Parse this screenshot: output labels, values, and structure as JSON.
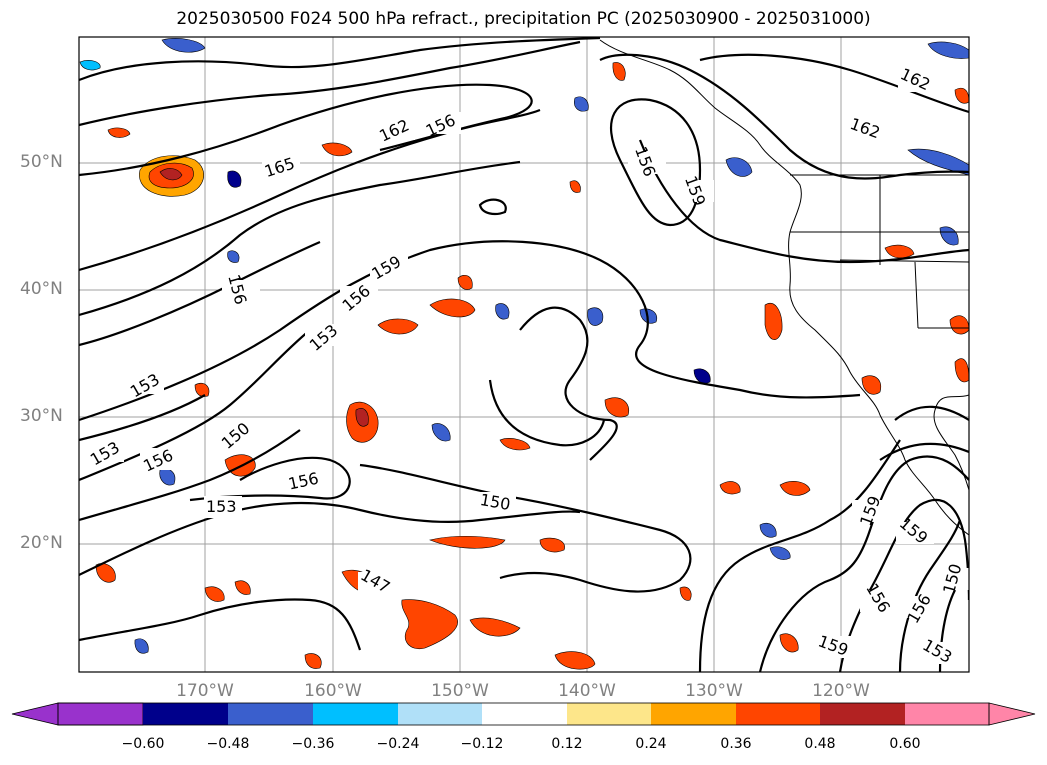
{
  "title": "2025030500 F024 500 hPa refract., precipitation PC (2025030900 - 2025031000)",
  "map": {
    "lat_labels": [
      "50°N",
      "40°N",
      "30°N",
      "20°N"
    ],
    "lon_labels": [
      "170°W",
      "160°W",
      "150°W",
      "140°W",
      "130°W",
      "120°W"
    ],
    "extent": {
      "lon_min": -180,
      "lon_max": -110,
      "lat_min": 10,
      "lat_max": 60
    },
    "gridlines": true,
    "contour_levels": [
      "147",
      "150",
      "153",
      "156",
      "159",
      "162",
      "165"
    ],
    "contour_labels": [
      "165",
      "162",
      "156",
      "162",
      "162",
      "156",
      "159",
      "156",
      "159",
      "156",
      "153",
      "153",
      "153",
      "156",
      "150",
      "156",
      "153",
      "150",
      "147",
      "159",
      "159",
      "156",
      "156",
      "150",
      "153",
      "159"
    ]
  },
  "colorbar": {
    "ticks": [
      "−0.60",
      "−0.48",
      "−0.36",
      "−0.24",
      "−0.12",
      "0.12",
      "0.24",
      "0.36",
      "0.48",
      "0.60"
    ],
    "colors": [
      "#9932cc",
      "#00008b",
      "#3a5fcd",
      "#00bfff",
      "#b0e0f8",
      "#ffffff",
      "#fde68a",
      "#ffa500",
      "#ff4500",
      "#b22222",
      "#ff85a8"
    ]
  }
}
